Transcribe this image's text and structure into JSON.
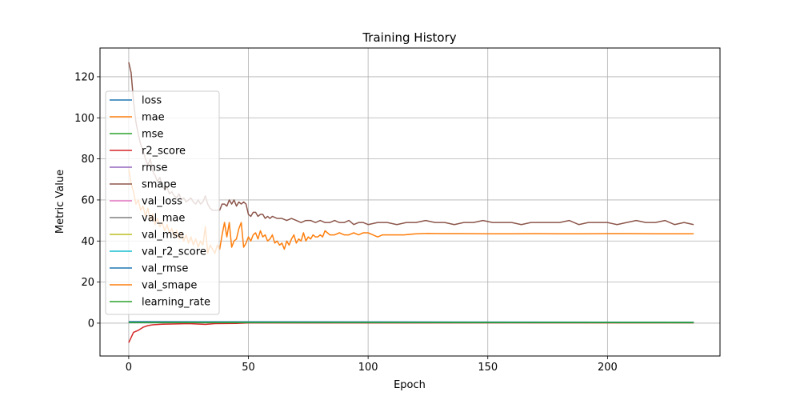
{
  "chart_data": {
    "type": "line",
    "title": "Training History",
    "xlabel": "Epoch",
    "ylabel": "Metric Value",
    "xlim": [
      -12,
      247
    ],
    "ylim": [
      -16,
      134
    ],
    "x_ticks": [
      0,
      50,
      100,
      150,
      200
    ],
    "y_ticks": [
      0,
      20,
      40,
      60,
      80,
      100,
      120
    ],
    "grid": true,
    "legend_position": "upper-left",
    "epochs": 237,
    "series": [
      {
        "name": "loss",
        "color": "#1f77b4",
        "points": [
          [
            0,
            0.5
          ],
          [
            236,
            0.2
          ]
        ]
      },
      {
        "name": "mae",
        "color": "#ff7f0e",
        "points": [
          [
            0,
            0.4
          ],
          [
            236,
            0.2
          ]
        ]
      },
      {
        "name": "mse",
        "color": "#2ca02c",
        "points": [
          [
            0,
            0.6
          ],
          [
            236,
            0.2
          ]
        ]
      },
      {
        "name": "r2_score",
        "color": "#d62728",
        "points": [
          [
            0,
            -9.5
          ],
          [
            1,
            -7
          ],
          [
            2,
            -4.5
          ],
          [
            4,
            -3.5
          ],
          [
            6,
            -2
          ],
          [
            8,
            -1.2
          ],
          [
            10,
            -0.8
          ],
          [
            14,
            -0.5
          ],
          [
            18,
            -0.4
          ],
          [
            25,
            -0.2
          ],
          [
            32,
            -0.6
          ],
          [
            36,
            -0.2
          ],
          [
            45,
            -0.1
          ],
          [
            50,
            0.1
          ],
          [
            236,
            0.2
          ]
        ]
      },
      {
        "name": "rmse",
        "color": "#9467bd",
        "points": [
          [
            0,
            0.7
          ],
          [
            236,
            0.3
          ]
        ]
      },
      {
        "name": "smape",
        "color": "#8c564b",
        "points": [
          [
            0,
            127
          ],
          [
            1,
            122
          ],
          [
            2,
            108
          ],
          [
            3,
            98
          ],
          [
            4,
            92
          ],
          [
            5,
            87
          ],
          [
            6,
            84
          ],
          [
            7,
            80
          ],
          [
            8,
            77
          ],
          [
            9,
            80
          ],
          [
            10,
            74
          ],
          [
            11,
            72
          ],
          [
            12,
            69
          ],
          [
            13,
            71
          ],
          [
            14,
            67
          ],
          [
            15,
            65
          ],
          [
            16,
            66
          ],
          [
            17,
            63
          ],
          [
            18,
            64
          ],
          [
            19,
            62
          ],
          [
            20,
            61
          ],
          [
            21,
            63
          ],
          [
            22,
            60
          ],
          [
            23,
            61
          ],
          [
            24,
            59
          ],
          [
            25,
            60
          ],
          [
            26,
            61
          ],
          [
            27,
            59
          ],
          [
            28,
            58
          ],
          [
            29,
            60
          ],
          [
            30,
            58
          ],
          [
            31,
            59
          ],
          [
            32,
            62
          ],
          [
            33,
            58
          ],
          [
            34,
            56
          ],
          [
            35,
            55
          ],
          [
            36,
            55
          ],
          [
            37,
            55
          ],
          [
            38,
            55
          ],
          [
            39,
            58
          ],
          [
            40,
            58
          ],
          [
            41,
            57
          ],
          [
            42,
            60
          ],
          [
            43,
            58
          ],
          [
            44,
            60
          ],
          [
            45,
            57
          ],
          [
            46,
            59
          ],
          [
            47,
            58
          ],
          [
            48,
            59
          ],
          [
            49,
            58
          ],
          [
            50,
            53
          ],
          [
            51,
            52
          ],
          [
            52,
            54
          ],
          [
            53,
            54
          ],
          [
            54,
            52
          ],
          [
            55,
            53
          ],
          [
            56,
            53
          ],
          [
            57,
            51
          ],
          [
            58,
            52
          ],
          [
            59,
            51
          ],
          [
            60,
            52
          ],
          [
            62,
            51
          ],
          [
            64,
            51
          ],
          [
            66,
            50
          ],
          [
            68,
            51
          ],
          [
            70,
            50
          ],
          [
            72,
            49
          ],
          [
            74,
            50
          ],
          [
            76,
            50
          ],
          [
            78,
            49
          ],
          [
            80,
            50
          ],
          [
            82,
            49
          ],
          [
            84,
            49
          ],
          [
            86,
            50
          ],
          [
            88,
            49
          ],
          [
            90,
            49
          ],
          [
            92,
            50
          ],
          [
            94,
            48
          ],
          [
            96,
            49
          ],
          [
            98,
            49
          ],
          [
            100,
            48
          ],
          [
            104,
            49
          ],
          [
            108,
            49
          ],
          [
            112,
            48
          ],
          [
            116,
            49
          ],
          [
            120,
            49
          ],
          [
            124,
            50
          ],
          [
            128,
            49
          ],
          [
            132,
            49
          ],
          [
            136,
            48
          ],
          [
            140,
            49
          ],
          [
            144,
            49
          ],
          [
            148,
            50
          ],
          [
            152,
            49
          ],
          [
            156,
            49
          ],
          [
            160,
            49
          ],
          [
            164,
            48
          ],
          [
            168,
            49
          ],
          [
            172,
            49
          ],
          [
            176,
            49
          ],
          [
            180,
            49
          ],
          [
            184,
            50
          ],
          [
            188,
            48
          ],
          [
            192,
            49
          ],
          [
            196,
            49
          ],
          [
            200,
            49
          ],
          [
            204,
            48
          ],
          [
            208,
            49
          ],
          [
            212,
            50
          ],
          [
            216,
            49
          ],
          [
            220,
            49
          ],
          [
            224,
            50
          ],
          [
            228,
            48
          ],
          [
            232,
            49
          ],
          [
            236,
            48
          ]
        ]
      },
      {
        "name": "val_loss",
        "color": "#e377c2",
        "points": [
          [
            0,
            0.5
          ],
          [
            236,
            0.3
          ]
        ]
      },
      {
        "name": "val_mae",
        "color": "#7f7f7f",
        "points": [
          [
            0,
            0.5
          ],
          [
            236,
            0.3
          ]
        ]
      },
      {
        "name": "val_mse",
        "color": "#bcbd22",
        "points": [
          [
            0,
            0.6
          ],
          [
            236,
            0.3
          ]
        ]
      },
      {
        "name": "val_r2_score",
        "color": "#17becf",
        "points": [
          [
            0,
            0.3
          ],
          [
            236,
            0.3
          ]
        ]
      },
      {
        "name": "val_rmse",
        "color": "#1f77b4",
        "points": [
          [
            0,
            0.7
          ],
          [
            236,
            0.4
          ]
        ]
      },
      {
        "name": "val_smape",
        "color": "#ff7f0e",
        "points": [
          [
            0,
            75
          ],
          [
            1,
            68
          ],
          [
            2,
            64
          ],
          [
            3,
            58
          ],
          [
            4,
            60
          ],
          [
            5,
            55
          ],
          [
            6,
            57
          ],
          [
            7,
            52
          ],
          [
            8,
            56
          ],
          [
            9,
            50
          ],
          [
            10,
            53
          ],
          [
            11,
            48
          ],
          [
            12,
            51
          ],
          [
            13,
            47
          ],
          [
            14,
            49
          ],
          [
            15,
            45
          ],
          [
            16,
            48
          ],
          [
            17,
            44
          ],
          [
            18,
            46
          ],
          [
            19,
            42
          ],
          [
            20,
            45
          ],
          [
            21,
            41
          ],
          [
            22,
            44
          ],
          [
            23,
            40
          ],
          [
            24,
            43
          ],
          [
            25,
            39
          ],
          [
            26,
            42
          ],
          [
            27,
            38
          ],
          [
            28,
            41
          ],
          [
            29,
            37
          ],
          [
            30,
            40
          ],
          [
            31,
            38
          ],
          [
            32,
            47
          ],
          [
            33,
            34
          ],
          [
            34,
            38
          ],
          [
            35,
            36
          ],
          [
            36,
            34
          ],
          [
            37,
            38
          ],
          [
            38,
            36
          ],
          [
            39,
            43
          ],
          [
            40,
            49
          ],
          [
            41,
            42
          ],
          [
            42,
            49
          ],
          [
            43,
            37
          ],
          [
            44,
            40
          ],
          [
            45,
            41
          ],
          [
            46,
            46
          ],
          [
            47,
            49
          ],
          [
            48,
            37
          ],
          [
            49,
            39
          ],
          [
            50,
            42
          ],
          [
            51,
            40
          ],
          [
            52,
            43
          ],
          [
            53,
            44
          ],
          [
            54,
            41
          ],
          [
            55,
            45
          ],
          [
            56,
            42
          ],
          [
            57,
            43
          ],
          [
            58,
            40
          ],
          [
            59,
            41
          ],
          [
            60,
            43
          ],
          [
            61,
            39
          ],
          [
            62,
            40
          ],
          [
            63,
            38
          ],
          [
            64,
            39
          ],
          [
            65,
            36
          ],
          [
            66,
            40
          ],
          [
            67,
            38
          ],
          [
            68,
            41
          ],
          [
            69,
            43
          ],
          [
            70,
            39
          ],
          [
            71,
            41
          ],
          [
            72,
            40
          ],
          [
            73,
            44
          ],
          [
            74,
            40
          ],
          [
            75,
            42
          ],
          [
            76,
            41
          ],
          [
            77,
            43
          ],
          [
            78,
            42
          ],
          [
            79,
            42
          ],
          [
            80,
            43
          ],
          [
            81,
            42
          ],
          [
            82,
            45
          ],
          [
            83,
            44
          ],
          [
            84,
            43
          ],
          [
            86,
            43
          ],
          [
            88,
            44
          ],
          [
            90,
            43
          ],
          [
            92,
            43
          ],
          [
            94,
            44
          ],
          [
            96,
            43
          ],
          [
            98,
            44
          ],
          [
            100,
            44
          ],
          [
            102,
            43
          ],
          [
            104,
            42
          ],
          [
            106,
            43
          ],
          [
            110,
            43
          ],
          [
            115,
            43
          ],
          [
            120,
            43.5
          ],
          [
            125,
            43.7
          ],
          [
            130,
            43.6
          ],
          [
            140,
            43.6
          ],
          [
            150,
            43.5
          ],
          [
            160,
            43.5
          ],
          [
            170,
            43.6
          ],
          [
            180,
            43.5
          ],
          [
            190,
            43.5
          ],
          [
            200,
            43.6
          ],
          [
            210,
            43.6
          ],
          [
            220,
            43.5
          ],
          [
            236,
            43.5
          ]
        ]
      },
      {
        "name": "learning_rate",
        "color": "#2ca02c",
        "points": [
          [
            0,
            0.3
          ],
          [
            236,
            0.3
          ]
        ]
      }
    ]
  }
}
